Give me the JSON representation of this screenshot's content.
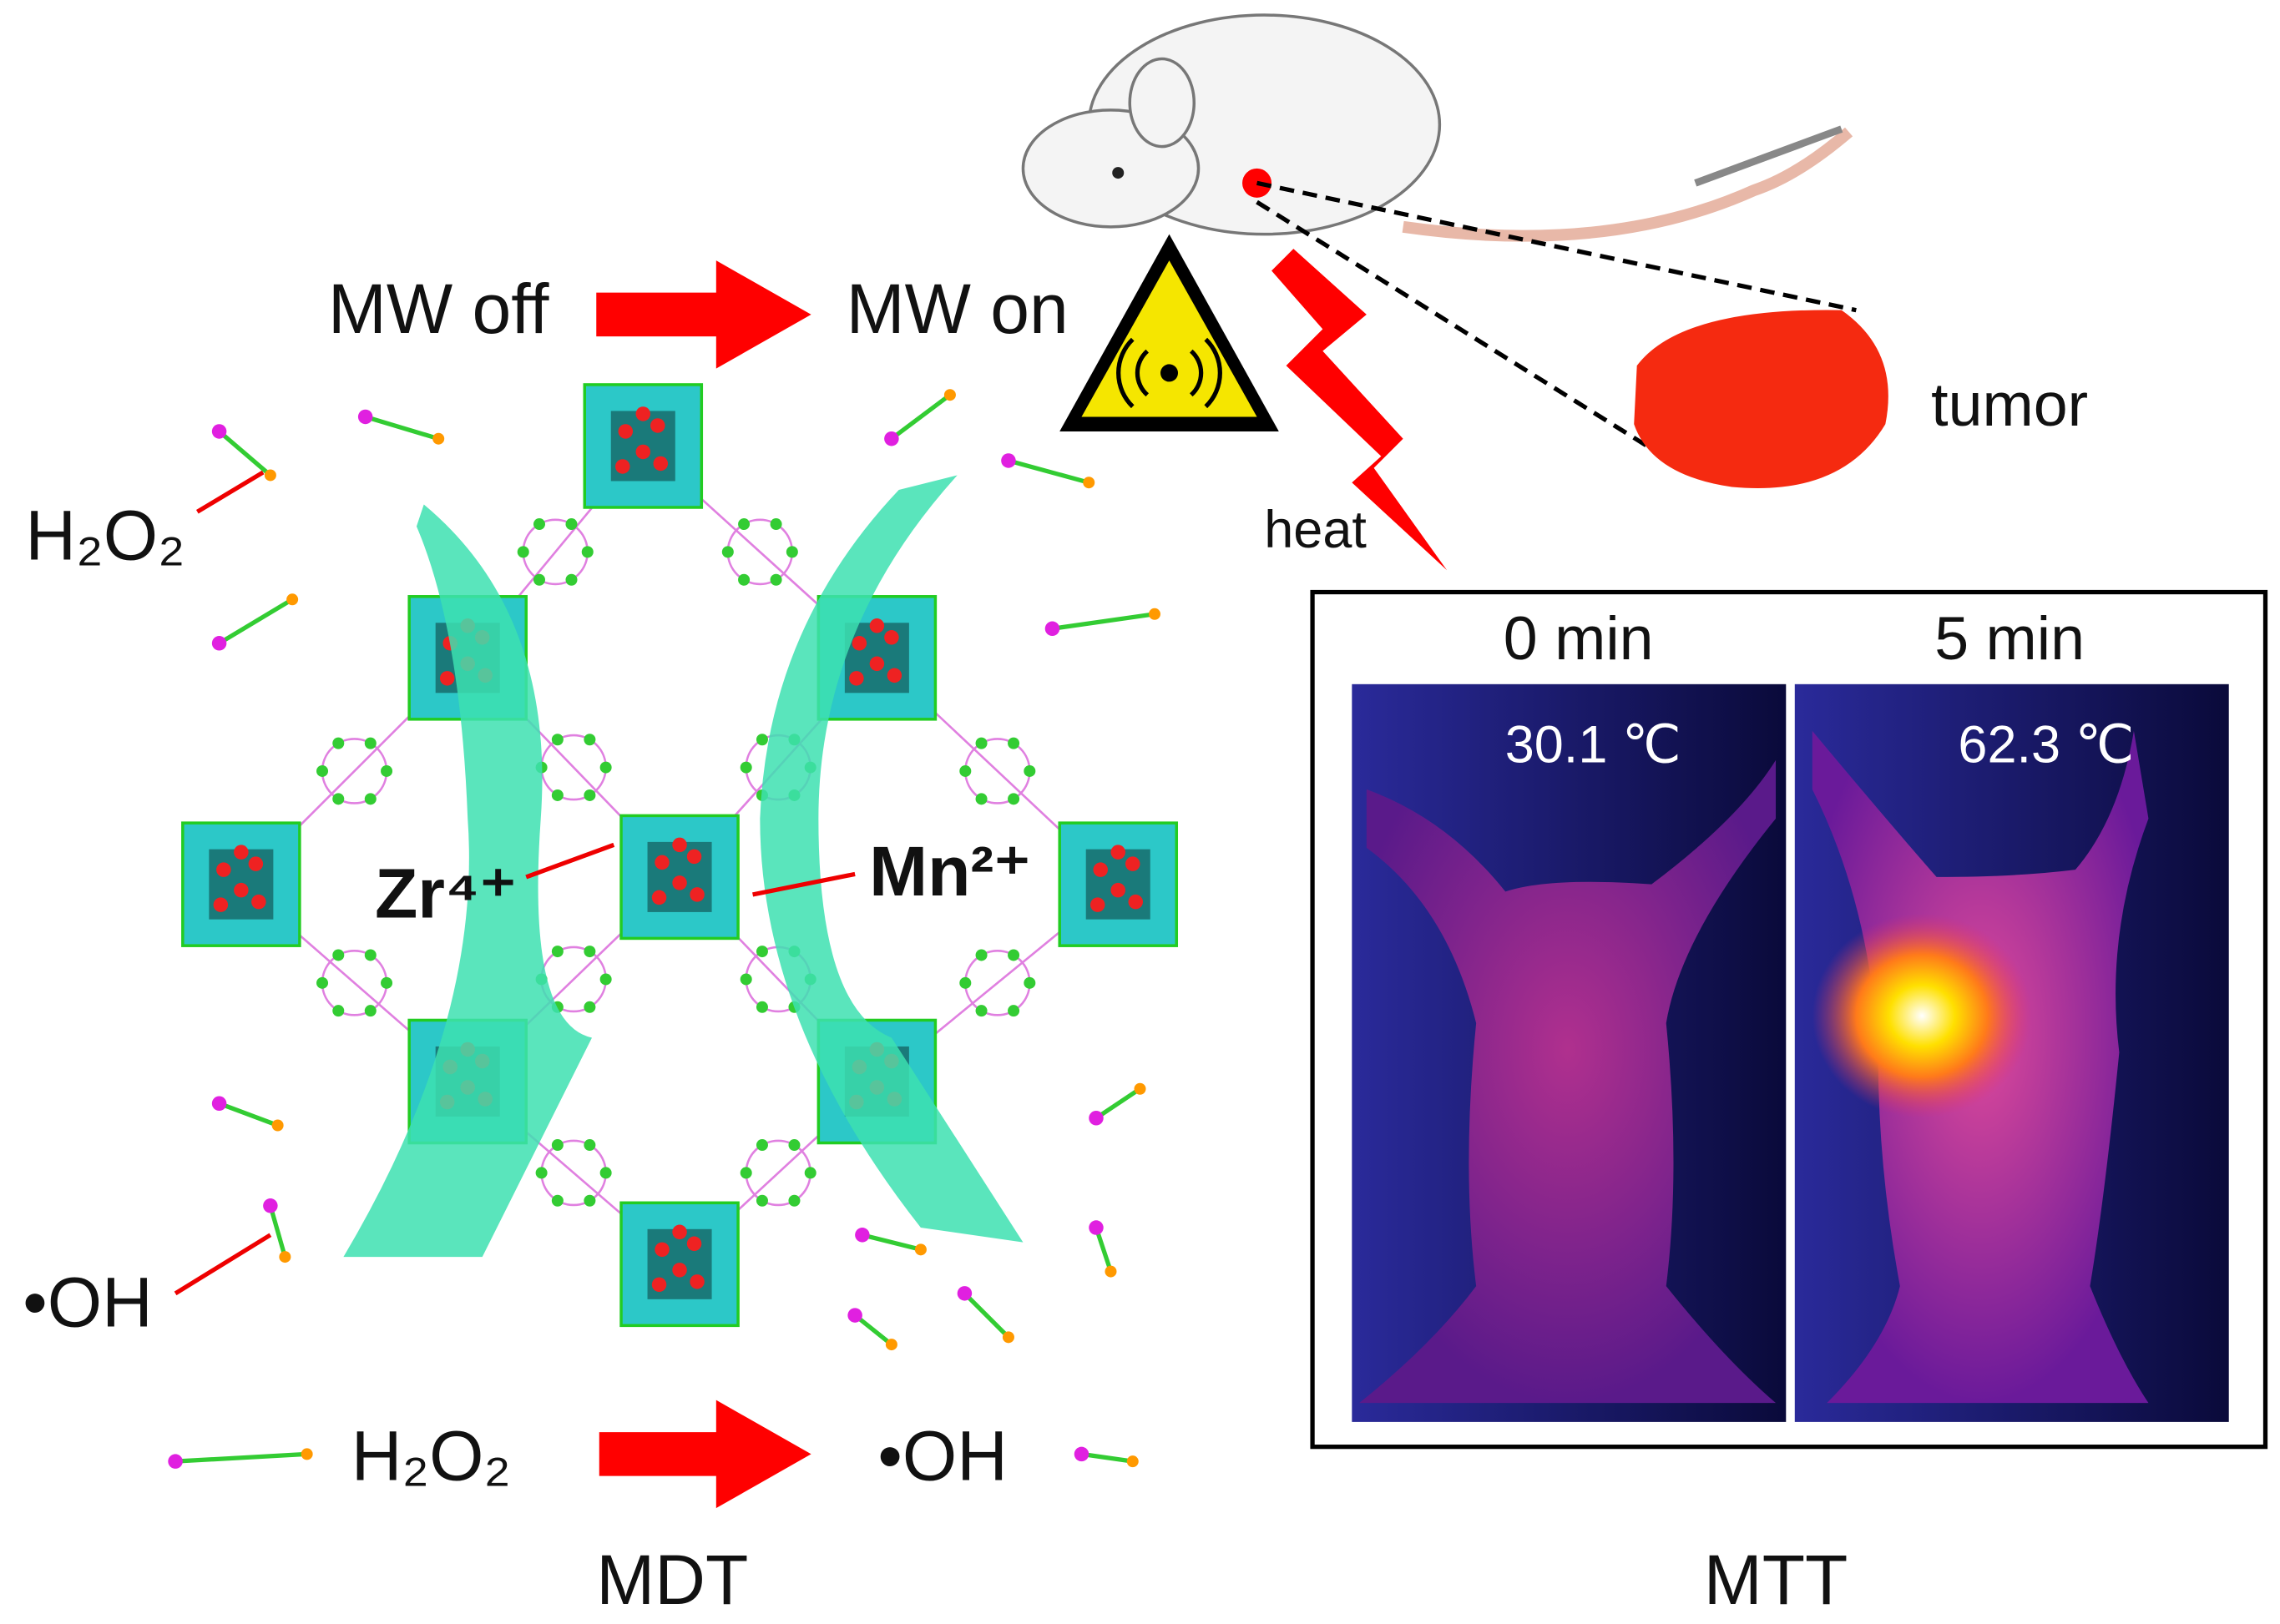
{
  "top": {
    "mw_off": "MW off",
    "mw_on": "MW on"
  },
  "left": {
    "h2o2": "H₂O₂",
    "oh": "•OH",
    "zr": "Zr⁴⁺",
    "mn": "Mn²⁺",
    "bottom_h2o2": "H₂O₂",
    "bottom_oh": "•OH",
    "label": "MDT"
  },
  "right": {
    "heat": "heat",
    "tumor": "tumor",
    "panels": [
      {
        "time": "0 min",
        "temp": "30.1 ℃"
      },
      {
        "time": "5 min",
        "temp": "62.3 ℃"
      }
    ],
    "label": "MTT"
  }
}
